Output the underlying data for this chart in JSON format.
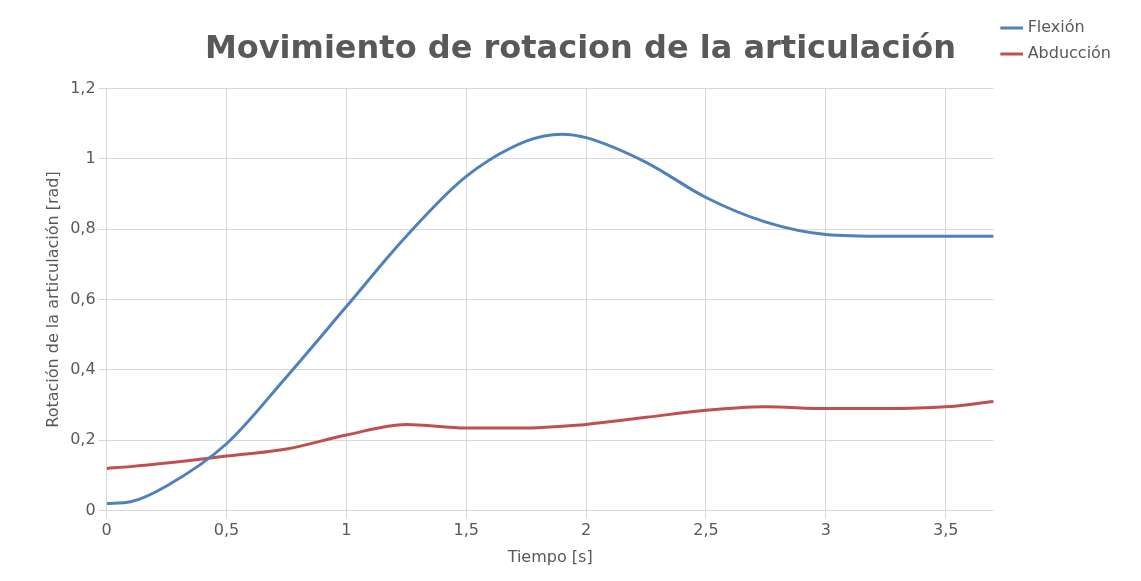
{
  "chart_data": {
    "type": "line",
    "title": "Movimiento de rotacion de la articulación",
    "xlabel": "Tiempo [s]",
    "ylabel": "Rotación de la articulación [rad]",
    "xlim": [
      0,
      3.7
    ],
    "xticks": [
      0,
      {
        "value": 0.5,
        "label": "0,5"
      },
      1,
      {
        "value": 1.5,
        "label": "1,5"
      },
      2,
      {
        "value": 2.5,
        "label": "2,5"
      },
      3,
      {
        "value": 3.5,
        "label": "3,5"
      }
    ],
    "ylim": [
      0,
      1.2
    ],
    "yticks": [
      0,
      {
        "value": 0.2,
        "label": "0,2"
      },
      {
        "value": 0.4,
        "label": "0,4"
      },
      {
        "value": 0.6,
        "label": "0,6"
      },
      {
        "value": 0.8,
        "label": "0,8"
      },
      1,
      {
        "value": 1.2,
        "label": "1,2"
      }
    ],
    "grid": true,
    "legend": "right",
    "marker": "none",
    "line_style": "solid",
    "x": [
      0,
      0.1,
      0.25,
      0.5,
      0.75,
      1,
      1.25,
      1.5,
      1.75,
      1.9,
      2,
      2.25,
      2.5,
      2.75,
      3,
      3.25,
      3.5,
      3.7
    ],
    "series": [
      {
        "name": "Flexión",
        "color": "#4f81bd",
        "values": [
          0.02,
          0.025,
          0.07,
          0.19,
          0.38,
          0.58,
          0.78,
          0.95,
          1.05,
          1.07,
          1.06,
          0.99,
          0.89,
          0.82,
          0.785,
          0.78,
          0.78,
          0.78
        ]
      },
      {
        "name": "Abducción",
        "color": "#c0504d",
        "values": [
          0.12,
          0.125,
          0.135,
          0.155,
          0.175,
          0.215,
          0.245,
          0.235,
          0.235,
          0.24,
          0.245,
          0.265,
          0.285,
          0.295,
          0.29,
          0.29,
          0.295,
          0.31
        ]
      }
    ]
  }
}
